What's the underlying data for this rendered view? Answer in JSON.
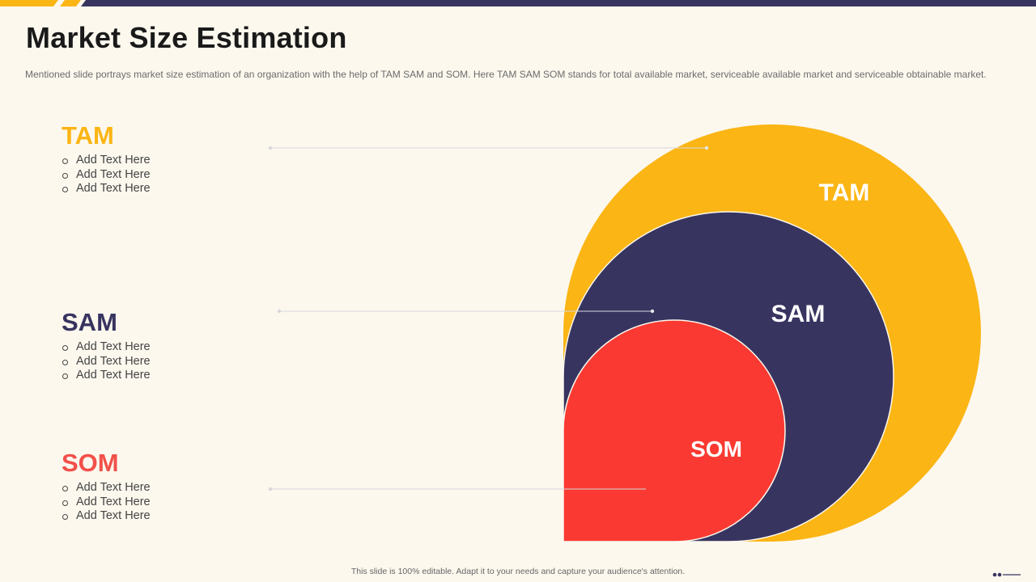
{
  "slide": {
    "title": "Market Size Estimation",
    "subtitle": "Mentioned slide portrays market size estimation of an organization with the help of TAM  SAM  and SOM.  Here TAM  SAM  SOM  stands for total available market, serviceable available market and serviceable obtainable market.",
    "footer": "This slide is 100% editable.  Adapt it to your needs and capture your audience's attention."
  },
  "colors": {
    "background": "#fcf8ee",
    "tam": "#fbb514",
    "sam": "#383460",
    "som": "#fa3a32",
    "connector": "#d7d7dc",
    "accent_bar": "#fbb514",
    "dark_bar": "#383460"
  },
  "segments": {
    "tam": {
      "heading": "TAM",
      "circle_label": "TAM",
      "bullets": [
        "Add Text Here",
        "Add Text Here",
        "Add Text Here"
      ]
    },
    "sam": {
      "heading": "SAM",
      "circle_label": "SAM",
      "bullets": [
        "Add Text Here",
        "Add Text Here",
        "Add Text Here"
      ]
    },
    "som": {
      "heading": "SOM",
      "circle_label": "SOM",
      "bullets": [
        "Add Text Here",
        "Add Text Here",
        "Add Text Here"
      ]
    }
  },
  "icons": {
    "bullet": "hollow-circle-bullet",
    "corner": "dots-and-line-mark"
  }
}
